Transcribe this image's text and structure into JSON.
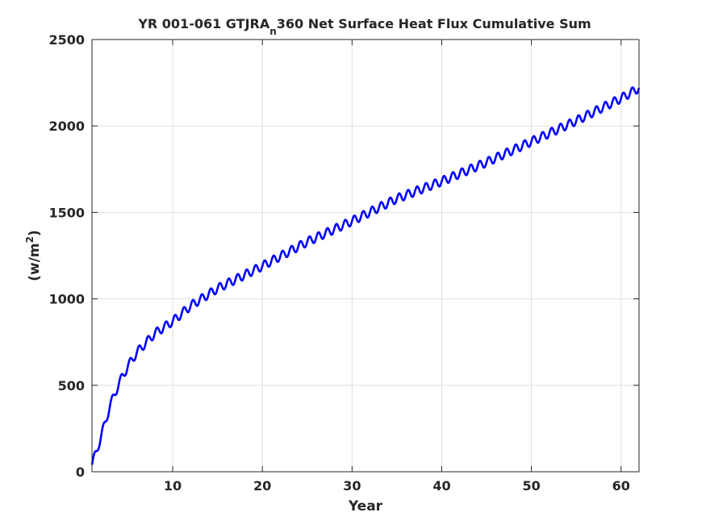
{
  "chart_data": {
    "type": "line",
    "title_prefix": "YR 001-061 GTJRA",
    "title_subscript": "n",
    "title_suffix": "360 Net Surface Heat Flux  Cumulative Sum",
    "xlabel": "Year",
    "ylabel_base": "(w/m",
    "ylabel_sup": "2",
    "ylabel_close": ")",
    "xlim": [
      1,
      62
    ],
    "ylim": [
      0,
      2500
    ],
    "xticks": [
      10,
      20,
      30,
      40,
      50,
      60
    ],
    "yticks": [
      0,
      500,
      1000,
      1500,
      2000,
      2500
    ],
    "grid": true,
    "line_color": "#0000ff",
    "seasonal_amplitude_first_years": 25,
    "seasonal_amplitude_late_years": 25,
    "annual_points": [
      {
        "x": 1,
        "y": 40
      },
      {
        "x": 2,
        "y": 200
      },
      {
        "x": 3,
        "y": 380
      },
      {
        "x": 4,
        "y": 510
      },
      {
        "x": 5,
        "y": 610
      },
      {
        "x": 6,
        "y": 690
      },
      {
        "x": 8,
        "y": 800
      },
      {
        "x": 10,
        "y": 870
      },
      {
        "x": 12,
        "y": 960
      },
      {
        "x": 15,
        "y": 1060
      },
      {
        "x": 20,
        "y": 1190
      },
      {
        "x": 25,
        "y": 1330
      },
      {
        "x": 30,
        "y": 1450
      },
      {
        "x": 35,
        "y": 1580
      },
      {
        "x": 40,
        "y": 1680
      },
      {
        "x": 45,
        "y": 1790
      },
      {
        "x": 50,
        "y": 1910
      },
      {
        "x": 55,
        "y": 2030
      },
      {
        "x": 60,
        "y": 2160
      },
      {
        "x": 62,
        "y": 2220
      }
    ]
  }
}
